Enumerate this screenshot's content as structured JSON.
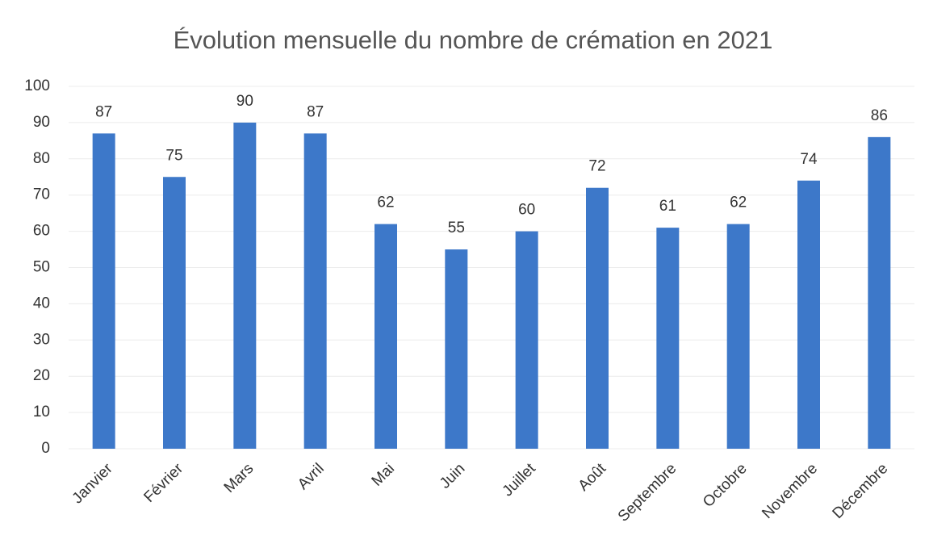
{
  "chart_data": {
    "type": "bar",
    "title": "Évolution mensuelle du nombre de crémation en 2021",
    "categories": [
      "Janvier",
      "Février",
      "Mars",
      "Avril",
      "Mai",
      "Juin",
      "Juillet",
      "Août",
      "Septembre",
      "Octobre",
      "Novembre",
      "Décembre"
    ],
    "values": [
      87,
      75,
      90,
      87,
      62,
      55,
      60,
      72,
      61,
      62,
      74,
      86
    ],
    "color": "#3d78c9",
    "ylim": [
      0,
      100
    ],
    "yticks": [
      0,
      10,
      20,
      30,
      40,
      50,
      60,
      70,
      80,
      90,
      100
    ],
    "grid": true
  }
}
